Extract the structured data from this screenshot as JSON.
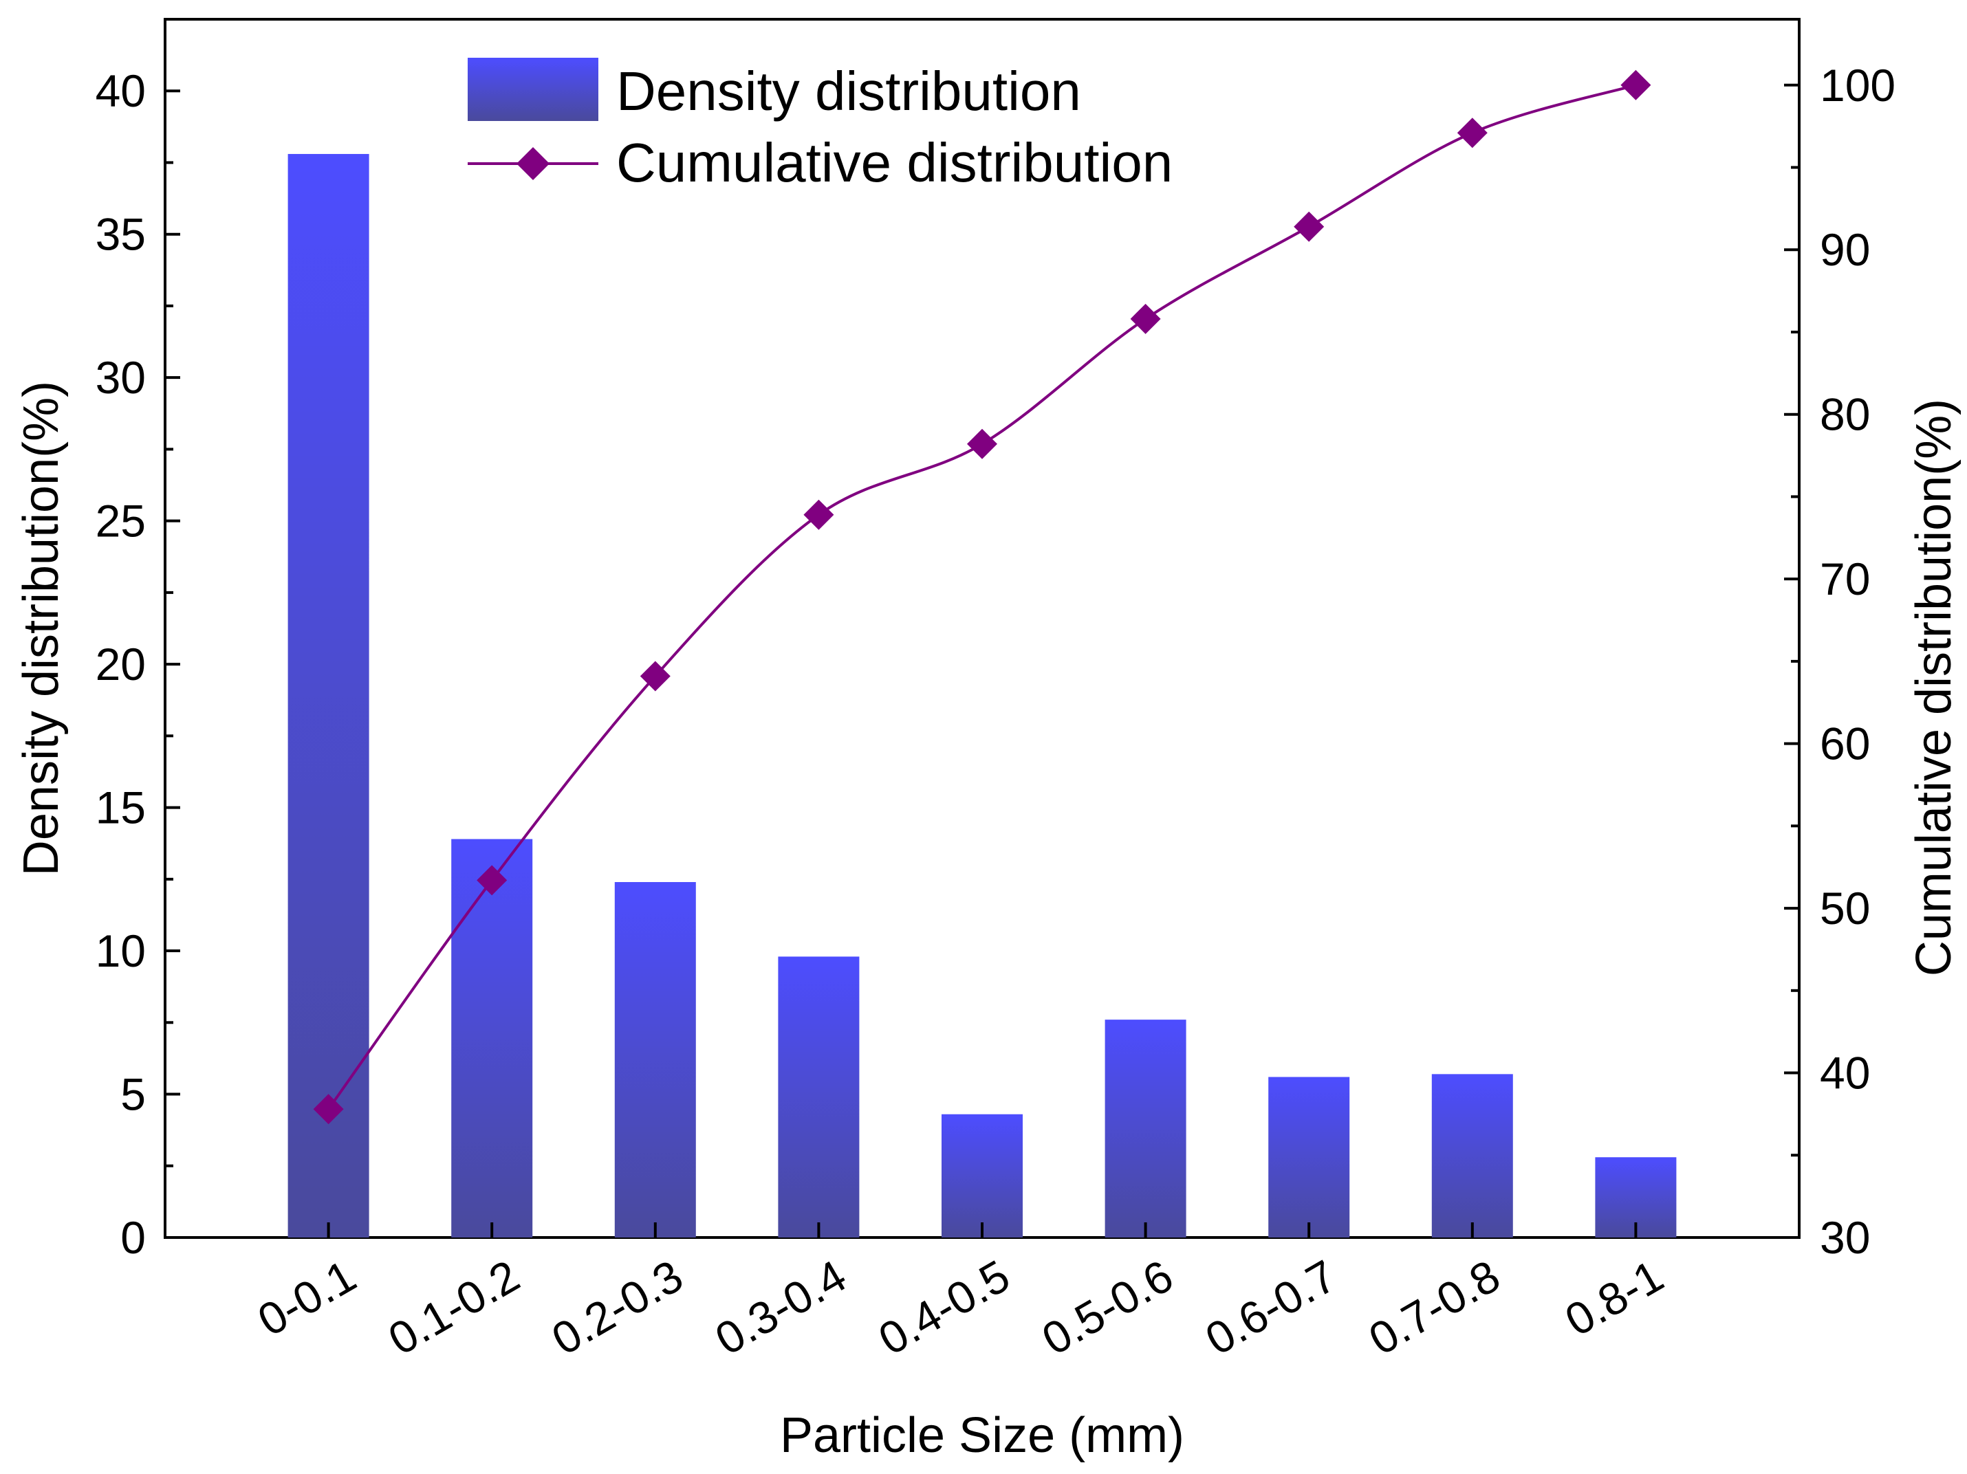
{
  "chart_data": {
    "type": "bar+line",
    "categories": [
      "0-0.1",
      "0.1-0.2",
      "0.2-0.3",
      "0.3-0.4",
      "0.4-0.5",
      "0.5-0.6",
      "0.6-0.7",
      "0.7-0.8",
      "0.8-1"
    ],
    "series": [
      {
        "name": "Density distribution",
        "type": "bar",
        "axis": "left",
        "values": [
          37.8,
          13.9,
          12.4,
          9.8,
          4.3,
          7.6,
          5.6,
          5.7,
          2.8
        ]
      },
      {
        "name": "Cumulative distribution",
        "type": "line",
        "axis": "right",
        "values": [
          37.8,
          51.7,
          64.1,
          73.9,
          78.2,
          85.8,
          91.4,
          97.1,
          100
        ]
      }
    ],
    "xlabel": "Particle Size (mm)",
    "ylabel": "Density distribution(%)",
    "y2label": "Cumulative distribution(%)",
    "ylim": [
      0,
      42.5
    ],
    "y2lim": [
      30,
      104
    ],
    "yticks": [
      "0",
      "5",
      "10",
      "15",
      "20",
      "25",
      "30",
      "35",
      "40"
    ],
    "y2ticks": [
      "30",
      "40",
      "50",
      "60",
      "70",
      "80",
      "90",
      "100"
    ],
    "legend": [
      "Density distribution",
      "Cumulative distribution"
    ],
    "legend_position": "top-center",
    "colors": {
      "bar_top": "#4d4dff",
      "bar_bottom": "#4a4a9c",
      "line": "#800080",
      "axis": "#000000"
    }
  }
}
